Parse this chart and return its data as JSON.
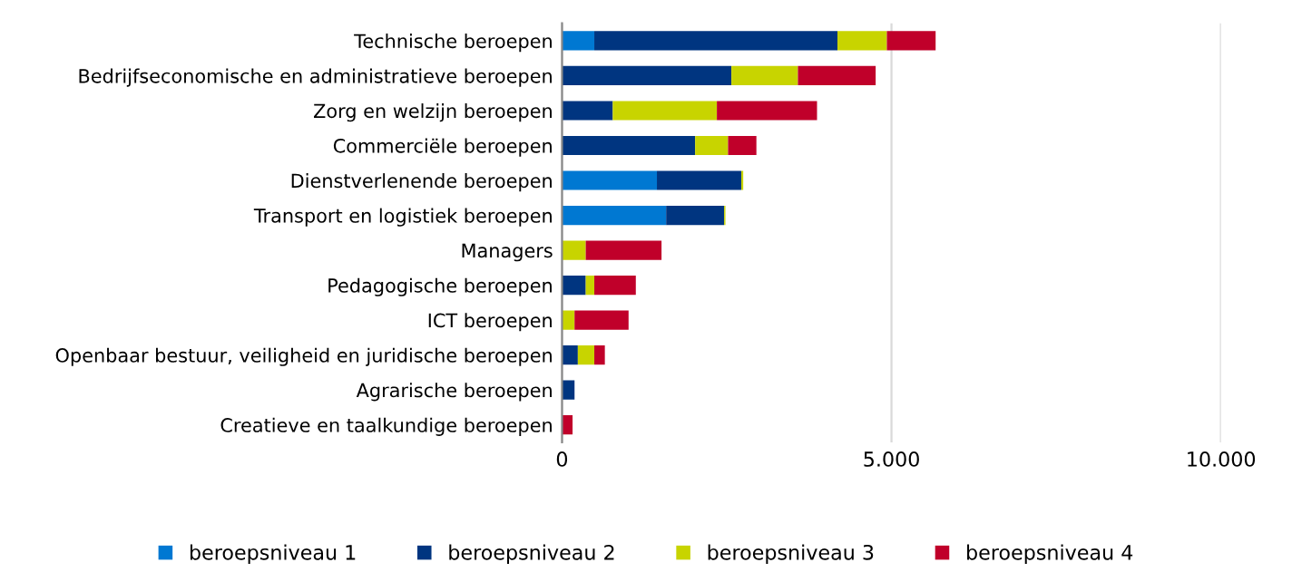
{
  "chart_data": {
    "type": "bar",
    "orientation": "horizontal",
    "stacked": true,
    "categories": [
      "Technische beroepen",
      "Bedrijfseconomische en administratieve beroepen",
      "Zorg en welzijn beroepen",
      "Commerciële beroepen",
      "Dienstverlenende beroepen",
      "Transport en logistiek beroepen",
      "Managers",
      "Pedagogische beroepen",
      "ICT beroepen",
      "Openbaar bestuur, veiligheid en juridische beroepen",
      "Agrarische beroepen",
      "Creatieve en taalkundige beroepen"
    ],
    "series": [
      {
        "name": "beroepsniveau 1",
        "color": "#0078d2",
        "values": [
          490,
          0,
          0,
          0,
          1440,
          1580,
          0,
          0,
          0,
          0,
          0,
          0
        ]
      },
      {
        "name": "beroepsniveau 2",
        "color": "#003580",
        "values": [
          3690,
          2570,
          770,
          2020,
          1280,
          880,
          0,
          360,
          0,
          240,
          190,
          0
        ]
      },
      {
        "name": "beroepsniveau 3",
        "color": "#c8d400",
        "values": [
          750,
          1010,
          1580,
          500,
          30,
          20,
          360,
          130,
          190,
          250,
          0,
          0
        ]
      },
      {
        "name": "beroepsniveau 4",
        "color": "#c0002a",
        "values": [
          740,
          1180,
          1520,
          430,
          0,
          0,
          1150,
          630,
          820,
          160,
          0,
          160
        ]
      }
    ],
    "xlim": [
      0,
      10000
    ],
    "xticks": [
      {
        "value": 0,
        "label": "0"
      },
      {
        "value": 5000,
        "label": "5.000"
      },
      {
        "value": 10000,
        "label": "10.000"
      }
    ],
    "grid": "x",
    "legend": "bottom"
  }
}
